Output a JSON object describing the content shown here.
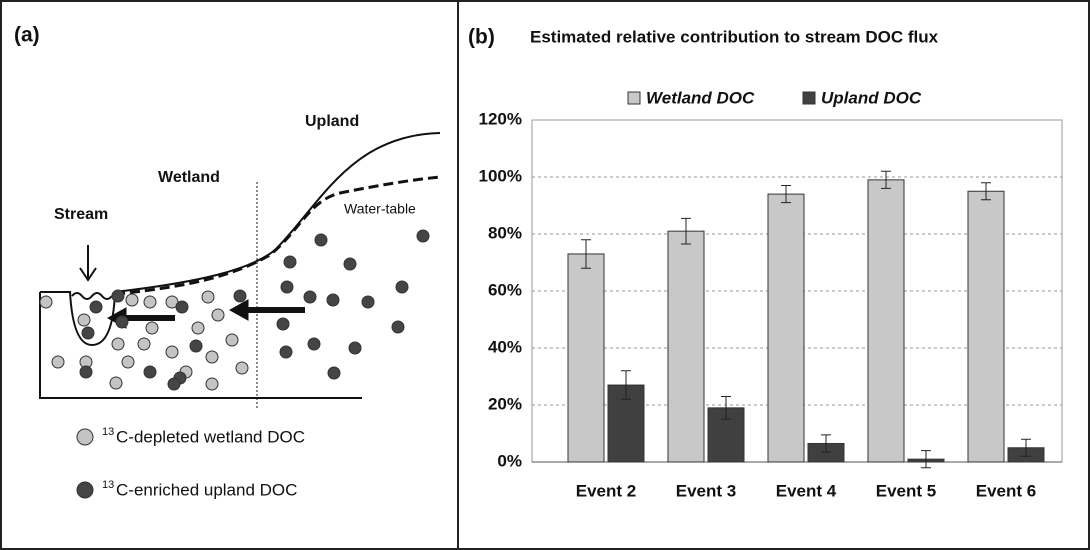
{
  "panel_a": {
    "label": "(a)",
    "upland": "Upland",
    "wetland": "Wetland",
    "stream": "Stream",
    "water_table": "Water-table",
    "legend": [
      {
        "isotope": "13",
        "text": "C-depleted wetland DOC"
      },
      {
        "isotope": "13",
        "text": "C-enriched upland DOC"
      }
    ]
  },
  "chart_data": {
    "type": "bar",
    "panel_label": "(b)",
    "title": "Estimated relative contribution to stream DOC flux",
    "categories": [
      "Event 2",
      "Event 3",
      "Event 4",
      "Event 5",
      "Event 6"
    ],
    "series": [
      {
        "name": "Wetland DOC",
        "color": "#c8c8c8",
        "values": [
          73,
          81,
          94,
          99,
          95
        ],
        "errors": [
          5,
          4.5,
          3,
          3,
          3
        ]
      },
      {
        "name": "Upland DOC",
        "color": "#404040",
        "values": [
          27,
          19,
          6.5,
          1,
          5
        ],
        "errors": [
          5,
          4,
          3,
          3,
          3
        ]
      }
    ],
    "ylim": [
      0,
      120
    ],
    "yticks": [
      {
        "value": 0,
        "label": "0%"
      },
      {
        "value": 20,
        "label": "20%"
      },
      {
        "value": 40,
        "label": "40%"
      },
      {
        "value": 60,
        "label": "60%"
      },
      {
        "value": 80,
        "label": "80%"
      },
      {
        "value": 100,
        "label": "100%"
      },
      {
        "value": 120,
        "label": "120%"
      }
    ],
    "grid": true,
    "legend": "top"
  }
}
